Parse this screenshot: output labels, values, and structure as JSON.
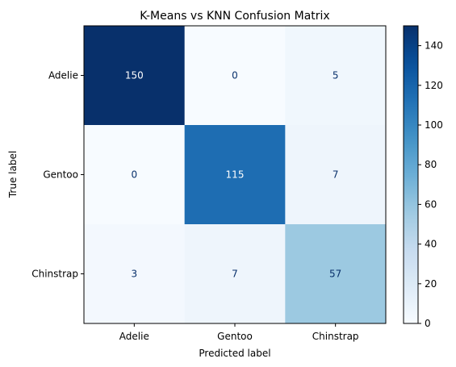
{
  "chart_data": {
    "type": "heatmap",
    "title": "K-Means vs KNN Confusion Matrix",
    "xlabel": "Predicted label",
    "ylabel": "True label",
    "x_categories": [
      "Adelie",
      "Gentoo",
      "Chinstrap"
    ],
    "y_categories": [
      "Adelie",
      "Gentoo",
      "Chinstrap"
    ],
    "values": [
      [
        150,
        0,
        5
      ],
      [
        0,
        115,
        7
      ],
      [
        3,
        7,
        57
      ]
    ],
    "colormap": "Blues",
    "colorbar": {
      "range": [
        0,
        150
      ],
      "ticks": [
        0,
        20,
        40,
        60,
        80,
        100,
        120,
        140
      ]
    },
    "grid": false
  }
}
